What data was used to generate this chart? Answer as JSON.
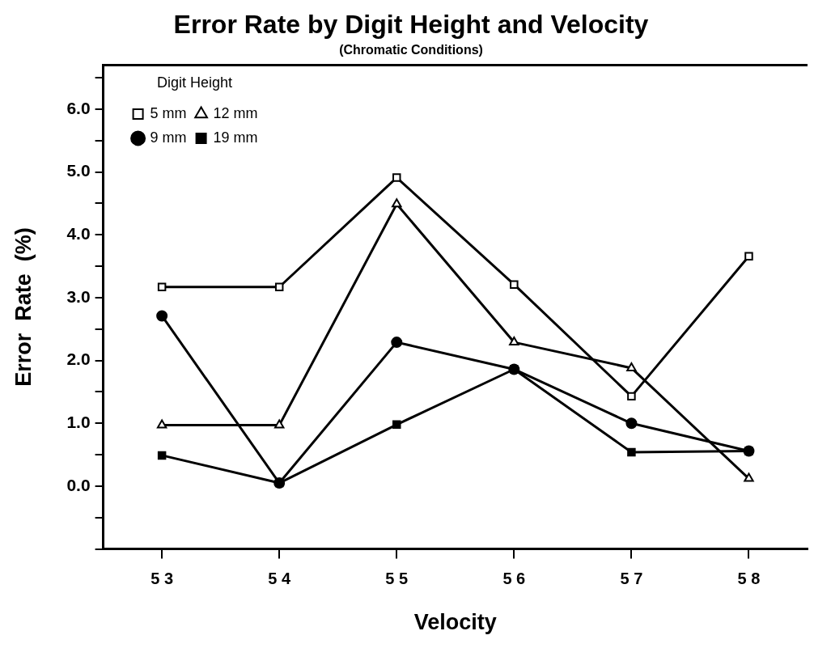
{
  "chart_data": {
    "type": "line",
    "title": "Error Rate by Digit Height and Velocity",
    "subtitle": "(Chromatic Conditions)",
    "xlabel": "Velocity",
    "ylabel": "Error  Rate  (%)",
    "legend_title": "Digit Height",
    "categories": [
      "5 3",
      "5 4",
      "5 5",
      "5 6",
      "5 7",
      "5 8"
    ],
    "ylim": [
      -1,
      6.7
    ],
    "yticks": [
      {
        "value": -1,
        "label": null
      },
      {
        "value": -0.5,
        "label": null
      },
      {
        "value": 0,
        "label": "0.0"
      },
      {
        "value": 0.5,
        "label": null
      },
      {
        "value": 1,
        "label": "1.0"
      },
      {
        "value": 1.5,
        "label": null
      },
      {
        "value": 2,
        "label": "2.0"
      },
      {
        "value": 2.5,
        "label": null
      },
      {
        "value": 3,
        "label": "3.0"
      },
      {
        "value": 3.5,
        "label": null
      },
      {
        "value": 4,
        "label": "4.0"
      },
      {
        "value": 4.5,
        "label": null
      },
      {
        "value": 5,
        "label": "5.0"
      },
      {
        "value": 5.5,
        "label": null
      },
      {
        "value": 6,
        "label": "6.0"
      },
      {
        "value": 6.5,
        "label": null
      }
    ],
    "grid": false,
    "legend": "top left",
    "line_style": "solid",
    "series": [
      {
        "name": "5 mm",
        "color": "#000000",
        "marker": "square",
        "values": [
          3.17,
          3.17,
          4.91,
          3.21,
          1.43,
          3.66
        ]
      },
      {
        "name": "9 mm",
        "color": "#000000",
        "marker": "circle",
        "values": [
          2.71,
          0.05,
          2.29,
          1.86,
          1.0,
          0.56
        ]
      },
      {
        "name": "12 mm",
        "color": "#000000",
        "marker": "triangle",
        "values": [
          0.97,
          0.97,
          4.49,
          2.29,
          1.88,
          0.12
        ]
      },
      {
        "name": "19 mm",
        "color": "#000000",
        "marker": "square",
        "values": [
          0.49,
          0.05,
          0.98,
          1.86,
          0.54,
          0.56
        ]
      }
    ]
  }
}
